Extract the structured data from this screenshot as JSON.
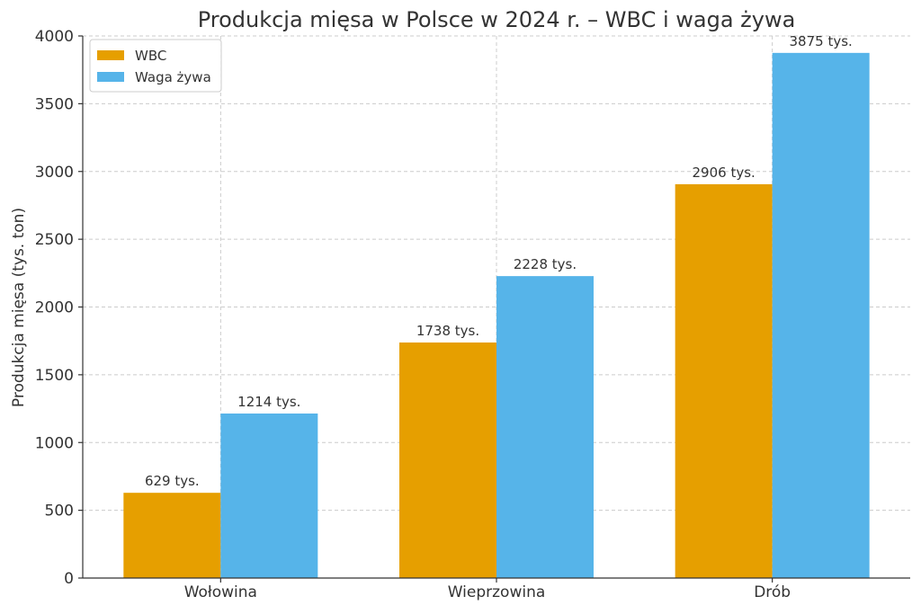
{
  "chart_data": {
    "type": "bar",
    "title": "Produkcja mięsa w Polsce w 2024 r. – WBC i waga żywa",
    "xlabel": "",
    "ylabel": "Produkcja mięsa (tys. ton)",
    "categories": [
      "Wołowina",
      "Wieprzowina",
      "Drób"
    ],
    "series": [
      {
        "name": "WBC",
        "values": [
          629,
          1738,
          2906
        ],
        "color": "#E69F00",
        "labels": [
          "629 tys.",
          "1738 tys.",
          "2906 tys."
        ]
      },
      {
        "name": "Waga żywa",
        "values": [
          1214,
          2228,
          3875
        ],
        "color": "#56B4E9",
        "labels": [
          "1214 tys.",
          "2228 tys.",
          "3875 tys."
        ]
      }
    ],
    "ylim": [
      0,
      4000
    ],
    "yticks": [
      0,
      500,
      1000,
      1500,
      2000,
      2500,
      3000,
      3500,
      4000
    ],
    "grid": true,
    "legend_position": "top-left"
  }
}
